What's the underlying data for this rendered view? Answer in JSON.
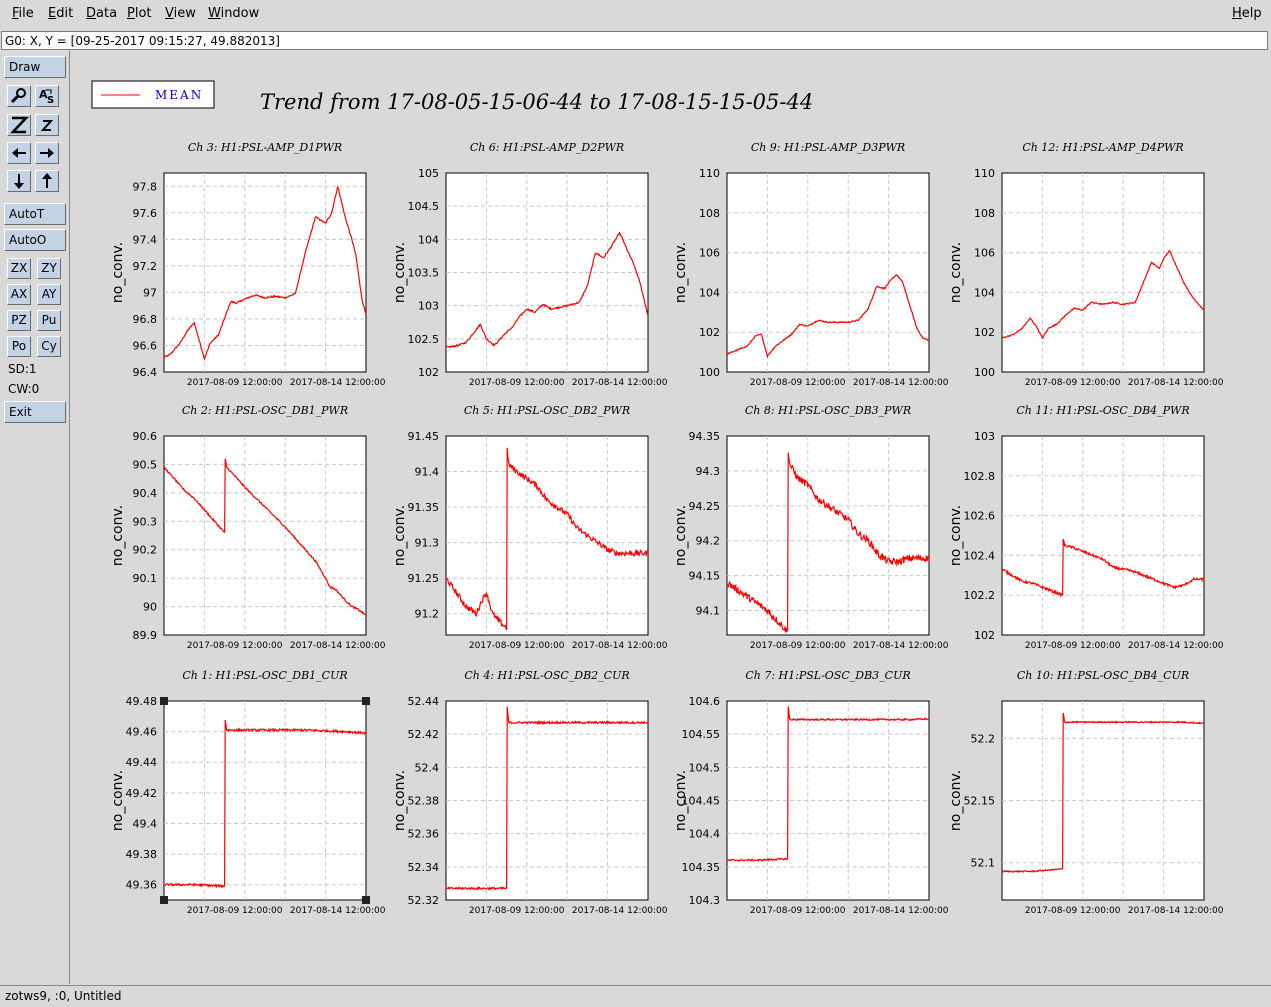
{
  "menubar": {
    "items": [
      {
        "label": "File",
        "u": "F",
        "rest": "ile"
      },
      {
        "label": "Edit",
        "u": "E",
        "rest": "dit"
      },
      {
        "label": "Data",
        "u": "D",
        "rest": "ata"
      },
      {
        "label": "Plot",
        "u": "P",
        "rest": "lot"
      },
      {
        "label": "View",
        "u": "V",
        "rest": "iew"
      },
      {
        "label": "Window",
        "u": "W",
        "rest": "indow"
      }
    ],
    "help": {
      "u": "H",
      "rest": "elp"
    }
  },
  "status": {
    "cursor": "G0: X, Y = [09-25-2017 09:15:27, 49.882013]"
  },
  "toolbar": {
    "draw": "Draw",
    "autot": "AutoT",
    "autoo": "AutoO",
    "zx": "ZX",
    "zy": "ZY",
    "ax": "AX",
    "ay": "AY",
    "pz": "PZ",
    "pu": "Pu",
    "po": "Po",
    "cy": "Cy",
    "sd": "SD:1",
    "cw": "CW:0",
    "exit": "Exit"
  },
  "footer": {
    "text": "zotws9, :0, Untitled"
  },
  "plot": {
    "legend": "MEAN",
    "title": "Trend from 17-08-05-15-06-44 to 17-08-15-15-05-44",
    "line_color": "#ff0000"
  },
  "chart_data": [
    {
      "type": "line",
      "title": "Ch 3: H1:PSL-AMP_D1PWR",
      "ylabel": "no_conv.",
      "xticks": [
        "2017-08-09 12:00:00",
        "2017-08-14 12:00:00"
      ],
      "yticks": [
        "96.4",
        "96.6",
        "96.8",
        "97",
        "97.2",
        "97.4",
        "97.6",
        "97.8"
      ],
      "ylim": [
        96.4,
        97.9
      ],
      "noise": 0.006,
      "series": [
        {
          "name": "MEAN",
          "x": [
            0,
            0.03,
            0.08,
            0.12,
            0.15,
            0.2,
            0.23,
            0.27,
            0.33,
            0.36,
            0.4,
            0.45,
            0.5,
            0.55,
            0.6,
            0.65,
            0.7,
            0.75,
            0.8,
            0.83,
            0.86,
            0.9,
            0.93,
            0.95,
            0.98,
            1
          ],
          "y": [
            96.51,
            96.53,
            96.62,
            96.72,
            96.77,
            96.5,
            96.62,
            96.68,
            96.93,
            96.92,
            96.95,
            96.98,
            96.96,
            96.97,
            96.96,
            96.99,
            97.3,
            97.57,
            97.52,
            97.6,
            97.8,
            97.55,
            97.4,
            97.28,
            96.95,
            96.83
          ]
        }
      ]
    },
    {
      "type": "line",
      "title": "Ch 6: H1:PSL-AMP_D2PWR",
      "ylabel": "no_conv.",
      "xticks": [
        "2017-08-09 12:00:00",
        "2017-08-14 12:00:00"
      ],
      "yticks": [
        "102",
        "102.5",
        "103",
        "103.5",
        "104",
        "104.5",
        "105"
      ],
      "ylim": [
        102,
        105
      ],
      "noise": 0.012,
      "series": [
        {
          "name": "MEAN",
          "x": [
            0,
            0.06,
            0.1,
            0.14,
            0.17,
            0.2,
            0.24,
            0.29,
            0.33,
            0.36,
            0.4,
            0.44,
            0.48,
            0.52,
            0.6,
            0.66,
            0.7,
            0.74,
            0.78,
            0.82,
            0.86,
            0.9,
            0.93,
            0.96,
            1
          ],
          "y": [
            102.37,
            102.4,
            102.45,
            102.6,
            102.72,
            102.5,
            102.4,
            102.57,
            102.68,
            102.82,
            102.95,
            102.9,
            103.02,
            102.95,
            103.0,
            103.05,
            103.3,
            103.8,
            103.72,
            103.9,
            104.1,
            103.82,
            103.62,
            103.35,
            102.85
          ]
        }
      ]
    },
    {
      "type": "line",
      "title": "Ch 9: H1:PSL-AMP_D3PWR",
      "ylabel": "no_conv.",
      "xticks": [
        "2017-08-09 12:00:00",
        "2017-08-14 12:00:00"
      ],
      "yticks": [
        "100",
        "102",
        "104",
        "106",
        "108",
        "110"
      ],
      "ylim": [
        100,
        110
      ],
      "noise": 0.03,
      "series": [
        {
          "name": "MEAN",
          "x": [
            0,
            0.05,
            0.1,
            0.14,
            0.17,
            0.2,
            0.24,
            0.28,
            0.32,
            0.36,
            0.4,
            0.45,
            0.5,
            0.55,
            0.6,
            0.65,
            0.7,
            0.74,
            0.78,
            0.81,
            0.84,
            0.87,
            0.9,
            0.94,
            0.97,
            1
          ],
          "y": [
            100.9,
            101.1,
            101.3,
            101.8,
            101.9,
            100.8,
            101.3,
            101.6,
            101.9,
            102.4,
            102.3,
            102.6,
            102.5,
            102.5,
            102.5,
            102.6,
            103.2,
            104.3,
            104.2,
            104.6,
            104.9,
            104.5,
            103.5,
            102.2,
            101.7,
            101.6
          ]
        }
      ]
    },
    {
      "type": "line",
      "title": "Ch 12: H1:PSL-AMP_D4PWR",
      "ylabel": "no_conv.",
      "xticks": [
        "2017-08-09 12:00:00",
        "2017-08-14 12:00:00"
      ],
      "yticks": [
        "100",
        "102",
        "104",
        "106",
        "108",
        "110"
      ],
      "ylim": [
        100,
        110
      ],
      "noise": 0.03,
      "series": [
        {
          "name": "MEAN",
          "x": [
            0,
            0.06,
            0.1,
            0.14,
            0.17,
            0.2,
            0.23,
            0.27,
            0.33,
            0.36,
            0.4,
            0.44,
            0.5,
            0.55,
            0.6,
            0.66,
            0.7,
            0.74,
            0.78,
            0.8,
            0.83,
            0.86,
            0.9,
            0.94,
            1
          ],
          "y": [
            101.7,
            101.9,
            102.2,
            102.7,
            102.3,
            101.7,
            102.2,
            102.4,
            103.0,
            103.2,
            103.1,
            103.5,
            103.4,
            103.5,
            103.4,
            103.5,
            104.5,
            105.5,
            105.2,
            105.7,
            106.1,
            105.4,
            104.5,
            103.8,
            103.1
          ]
        }
      ]
    },
    {
      "type": "line",
      "title": "Ch 2: H1:PSL-OSC_DB1_PWR",
      "ylabel": "no_conv.",
      "xticks": [
        "2017-08-09 12:00:00",
        "2017-08-14 12:00:00"
      ],
      "yticks": [
        "89.9",
        "90",
        "90.1",
        "90.2",
        "90.3",
        "90.4",
        "90.5",
        "90.6"
      ],
      "ylim": [
        89.9,
        90.6
      ],
      "noise": 0.003,
      "series": [
        {
          "name": "MEAN",
          "x": [
            0,
            0.05,
            0.1,
            0.15,
            0.2,
            0.25,
            0.3,
            0.3001,
            0.31,
            0.35,
            0.4,
            0.5,
            0.6,
            0.7,
            0.75,
            0.8,
            0.82,
            0.85,
            0.9,
            0.93,
            0.96,
            1
          ],
          "y": [
            90.49,
            90.45,
            90.41,
            90.38,
            90.34,
            90.3,
            90.26,
            90.53,
            90.49,
            90.46,
            90.42,
            90.35,
            90.28,
            90.2,
            90.16,
            90.1,
            90.07,
            90.06,
            90.02,
            90.0,
            89.99,
            89.97
          ]
        }
      ]
    },
    {
      "type": "line",
      "title": "Ch 5: H1:PSL-OSC_DB2_PWR",
      "ylabel": "no_conv.",
      "xticks": [
        "2017-08-09 12:00:00",
        "2017-08-14 12:00:00"
      ],
      "yticks": [
        "91.2",
        "91.25",
        "91.3",
        "91.35",
        "91.4",
        "91.45"
      ],
      "ylim": [
        91.17,
        91.45
      ],
      "noise": 0.004,
      "series": [
        {
          "name": "MEAN",
          "x": [
            0,
            0.05,
            0.1,
            0.15,
            0.18,
            0.2,
            0.23,
            0.26,
            0.3,
            0.3001,
            0.31,
            0.35,
            0.4,
            0.45,
            0.5,
            0.55,
            0.6,
            0.65,
            0.7,
            0.75,
            0.8,
            0.85,
            0.9,
            1
          ],
          "y": [
            91.25,
            91.23,
            91.21,
            91.2,
            91.22,
            91.23,
            91.2,
            91.19,
            91.18,
            91.44,
            91.41,
            91.4,
            91.39,
            91.38,
            91.36,
            91.35,
            91.34,
            91.32,
            91.31,
            91.3,
            91.29,
            91.285,
            91.285,
            91.285
          ]
        }
      ]
    },
    {
      "type": "line",
      "title": "Ch 8: H1:PSL-OSC_DB3_PWR",
      "ylabel": "no_conv.",
      "xticks": [
        "2017-08-09 12:00:00",
        "2017-08-14 12:00:00"
      ],
      "yticks": [
        "94.1",
        "94.15",
        "94.2",
        "94.25",
        "94.3",
        "94.35"
      ],
      "ylim": [
        94.065,
        94.35
      ],
      "noise": 0.005,
      "series": [
        {
          "name": "MEAN",
          "x": [
            0,
            0.05,
            0.1,
            0.15,
            0.2,
            0.25,
            0.3,
            0.3001,
            0.31,
            0.35,
            0.4,
            0.45,
            0.5,
            0.55,
            0.6,
            0.65,
            0.7,
            0.75,
            0.8,
            0.85,
            0.9,
            1
          ],
          "y": [
            94.14,
            94.13,
            94.12,
            94.11,
            94.1,
            94.085,
            94.07,
            94.34,
            94.31,
            94.29,
            94.28,
            94.26,
            94.25,
            94.24,
            94.23,
            94.21,
            94.2,
            94.18,
            94.17,
            94.17,
            94.175,
            94.175
          ]
        }
      ]
    },
    {
      "type": "line",
      "title": "Ch 11: H1:PSL-OSC_DB4_PWR",
      "ylabel": "no_conv.",
      "xticks": [
        "2017-08-09 12:00:00",
        "2017-08-14 12:00:00"
      ],
      "yticks": [
        "102",
        "102.2",
        "102.4",
        "102.6",
        "102.8",
        "103"
      ],
      "ylim": [
        102,
        103
      ],
      "noise": 0.006,
      "series": [
        {
          "name": "MEAN",
          "x": [
            0,
            0.05,
            0.1,
            0.15,
            0.2,
            0.25,
            0.3,
            0.3001,
            0.31,
            0.35,
            0.4,
            0.45,
            0.5,
            0.55,
            0.6,
            0.65,
            0.7,
            0.75,
            0.8,
            0.85,
            0.9,
            0.95,
            1
          ],
          "y": [
            102.33,
            102.3,
            102.27,
            102.26,
            102.24,
            102.22,
            102.2,
            102.5,
            102.45,
            102.44,
            102.42,
            102.4,
            102.38,
            102.34,
            102.33,
            102.32,
            102.3,
            102.28,
            102.26,
            102.24,
            102.25,
            102.28,
            102.28
          ]
        }
      ]
    },
    {
      "type": "line",
      "title": "Ch 1: H1:PSL-OSC_DB1_CUR",
      "ylabel": "no_conv.",
      "xticks": [
        "2017-08-09 12:00:00",
        "2017-08-14 12:00:00"
      ],
      "yticks": [
        "49.36",
        "49.38",
        "49.4",
        "49.42",
        "49.44",
        "49.46",
        "49.48"
      ],
      "ylim": [
        49.35,
        49.48
      ],
      "noise": 0.0007,
      "series": [
        {
          "name": "MEAN",
          "x": [
            0,
            0.15,
            0.3,
            0.3001,
            0.31,
            0.5,
            0.7,
            0.9,
            1
          ],
          "y": [
            49.36,
            49.36,
            49.359,
            49.471,
            49.461,
            49.461,
            49.461,
            49.46,
            49.459
          ]
        }
      ]
    },
    {
      "type": "line",
      "title": "Ch 4: H1:PSL-OSC_DB2_CUR",
      "ylabel": "no_conv.",
      "xticks": [
        "2017-08-09 12:00:00",
        "2017-08-14 12:00:00"
      ],
      "yticks": [
        "52.32",
        "52.34",
        "52.36",
        "52.38",
        "52.4",
        "52.42",
        "52.44"
      ],
      "ylim": [
        52.32,
        52.44
      ],
      "noise": 0.0006,
      "series": [
        {
          "name": "MEAN",
          "x": [
            0,
            0.15,
            0.3,
            0.3001,
            0.31,
            0.5,
            0.7,
            0.9,
            1
          ],
          "y": [
            52.327,
            52.327,
            52.327,
            52.44,
            52.427,
            52.427,
            52.427,
            52.427,
            52.427
          ]
        }
      ]
    },
    {
      "type": "line",
      "title": "Ch 7: H1:PSL-OSC_DB3_CUR",
      "ylabel": "no_conv.",
      "xticks": [
        "2017-08-09 12:00:00",
        "2017-08-14 12:00:00"
      ],
      "yticks": [
        "104.3",
        "104.35",
        "104.4",
        "104.45",
        "104.5",
        "104.55",
        "104.6"
      ],
      "ylim": [
        104.3,
        104.6
      ],
      "noise": 0.0012,
      "series": [
        {
          "name": "MEAN",
          "x": [
            0,
            0.15,
            0.3,
            0.3001,
            0.31,
            0.5,
            0.7,
            0.9,
            1
          ],
          "y": [
            104.36,
            104.36,
            104.362,
            104.6,
            104.572,
            104.572,
            104.572,
            104.572,
            104.573
          ]
        }
      ]
    },
    {
      "type": "line",
      "title": "Ch 10: H1:PSL-OSC_DB4_CUR",
      "ylabel": "no_conv.",
      "xticks": [
        "2017-08-09 12:00:00",
        "2017-08-14 12:00:00"
      ],
      "yticks": [
        "52.1",
        "52.15",
        "52.2"
      ],
      "ylim": [
        52.07,
        52.23
      ],
      "noise": 0.0005,
      "series": [
        {
          "name": "MEAN",
          "x": [
            0,
            0.15,
            0.3,
            0.3001,
            0.31,
            0.5,
            0.7,
            0.9,
            1
          ],
          "y": [
            52.093,
            52.093,
            52.095,
            52.223,
            52.213,
            52.213,
            52.213,
            52.213,
            52.212
          ]
        }
      ]
    }
  ]
}
